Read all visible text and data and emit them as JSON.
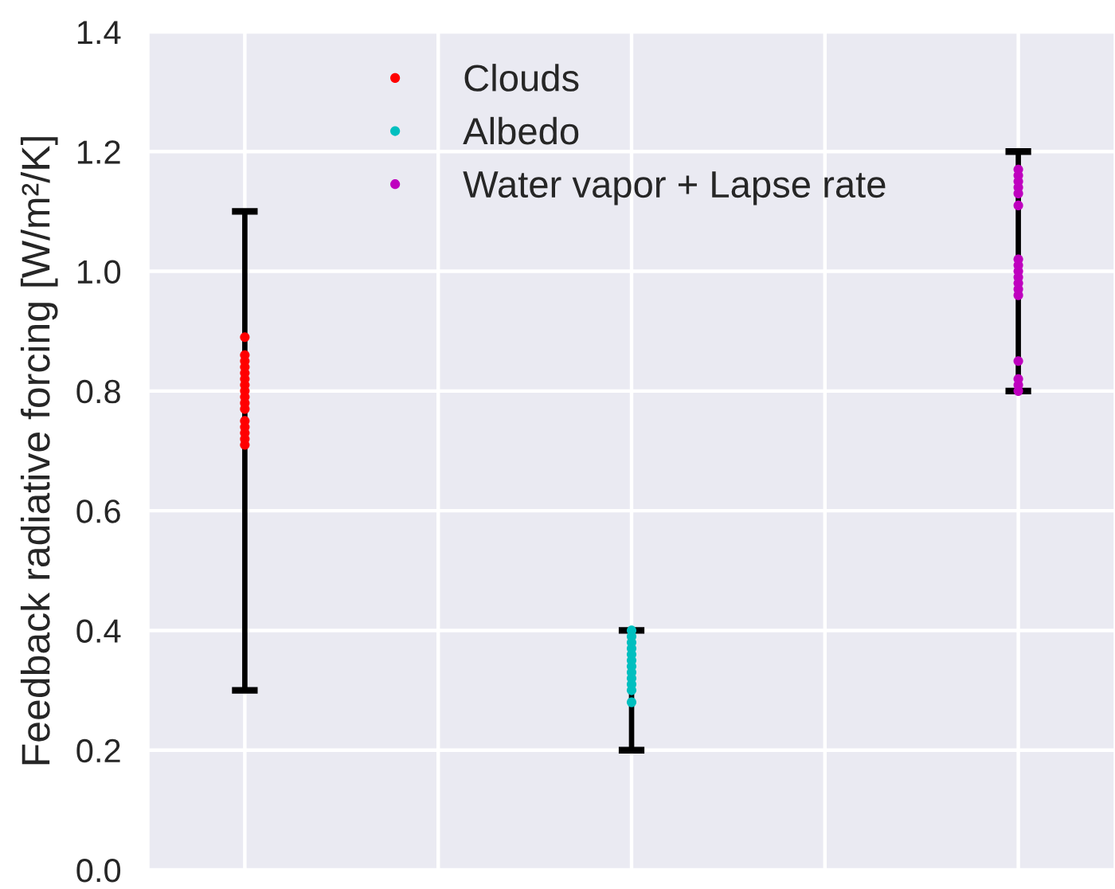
{
  "chart_data": {
    "type": "scatter",
    "ylabel": "Feedback radiative forcing [W/m²/K]",
    "categories": [
      null,
      null,
      null,
      null,
      null
    ],
    "ylim": [
      0,
      1.4
    ],
    "yticks": [
      {
        "value": 0,
        "label": "0.0"
      },
      0.2,
      0.4,
      0.6,
      0.8,
      {
        "value": 1,
        "label": "1.0"
      },
      1.2,
      1.4
    ],
    "tick_labels": "y",
    "grid": true,
    "legend": "top",
    "marker": "circle",
    "series": [
      {
        "name": "Clouds",
        "color": "#ff0000",
        "values": [
          0.89,
          null,
          null,
          null,
          null
        ],
        "errors": [
          [
            0.3,
            1.1
          ],
          null,
          null,
          null,
          null
        ]
      },
      {
        "name": "Albedo",
        "color": "#00bfbf",
        "values": [
          null,
          null,
          0.4,
          null,
          null
        ],
        "errors": [
          null,
          null,
          [
            0.2,
            0.4
          ],
          null,
          null
        ]
      },
      {
        "name": "Water vapor + Lapse rate",
        "color": "#bf00bf",
        "values": [
          null,
          null,
          null,
          null,
          1.17
        ],
        "errors": [
          null,
          null,
          null,
          null,
          [
            0.8,
            1.2
          ]
        ]
      },
      {
        "colors": [
          "#ff0000",
          null,
          "#00bfbf",
          null,
          "#bf00bf"
        ],
        "values": [
          0.86,
          null,
          0.39,
          null,
          1.16
        ]
      },
      {
        "colors": [
          "#ff0000",
          null,
          "#00bfbf",
          null,
          "#bf00bf"
        ],
        "values": [
          0.85,
          null,
          0.38,
          null,
          1.15
        ]
      },
      {
        "colors": [
          "#ff0000",
          null,
          "#00bfbf",
          null,
          "#bf00bf"
        ],
        "values": [
          0.84,
          null,
          0.37,
          null,
          1.14
        ]
      },
      {
        "colors": [
          "#ff0000",
          null,
          "#00bfbf",
          null,
          "#bf00bf"
        ],
        "values": [
          0.83,
          null,
          0.36,
          null,
          1.13
        ]
      },
      {
        "colors": [
          "#ff0000",
          null,
          "#00bfbf",
          null,
          "#bf00bf"
        ],
        "values": [
          0.82,
          null,
          0.35,
          null,
          1.11
        ]
      },
      {
        "colors": [
          "#ff0000",
          null,
          "#00bfbf",
          null,
          "#bf00bf"
        ],
        "values": [
          0.81,
          null,
          0.34,
          null,
          1.02
        ]
      },
      {
        "colors": [
          "#ff0000",
          null,
          "#00bfbf",
          null,
          "#bf00bf"
        ],
        "values": [
          0.8,
          null,
          0.33,
          null,
          1.01
        ]
      },
      {
        "colors": [
          "#ff0000",
          null,
          "#00bfbf",
          null,
          "#bf00bf"
        ],
        "values": [
          0.79,
          null,
          0.32,
          null,
          1.0
        ]
      },
      {
        "colors": [
          "#ff0000",
          null,
          "#00bfbf",
          null,
          "#bf00bf"
        ],
        "values": [
          0.78,
          null,
          0.31,
          null,
          0.99
        ]
      },
      {
        "colors": [
          "#ff0000",
          null,
          "#00bfbf",
          null,
          "#bf00bf"
        ],
        "values": [
          0.77,
          null,
          0.3,
          null,
          0.98
        ]
      },
      {
        "colors": [
          "#ff0000",
          null,
          "#00bfbf",
          null,
          "#bf00bf"
        ],
        "values": [
          0.75,
          null,
          0.28,
          null,
          0.97
        ]
      },
      {
        "colors": [
          "#ff0000",
          null,
          null,
          null,
          "#bf00bf"
        ],
        "values": [
          0.74,
          null,
          null,
          null,
          0.96
        ]
      },
      {
        "colors": [
          "#ff0000",
          null,
          null,
          null,
          "#bf00bf"
        ],
        "values": [
          0.73,
          null,
          null,
          null,
          0.85
        ]
      },
      {
        "colors": [
          "#ff0000",
          null,
          null,
          null,
          "#bf00bf"
        ],
        "values": [
          0.72,
          null,
          null,
          null,
          0.82
        ]
      },
      {
        "colors": [
          "#ff0000",
          null,
          null,
          null,
          "#bf00bf"
        ],
        "values": [
          0.71,
          null,
          null,
          null,
          0.81
        ]
      },
      {
        "colors": [
          null,
          null,
          null,
          null,
          "#bf00bf"
        ],
        "values": [
          null,
          null,
          null,
          null,
          0.8
        ]
      }
    ]
  }
}
